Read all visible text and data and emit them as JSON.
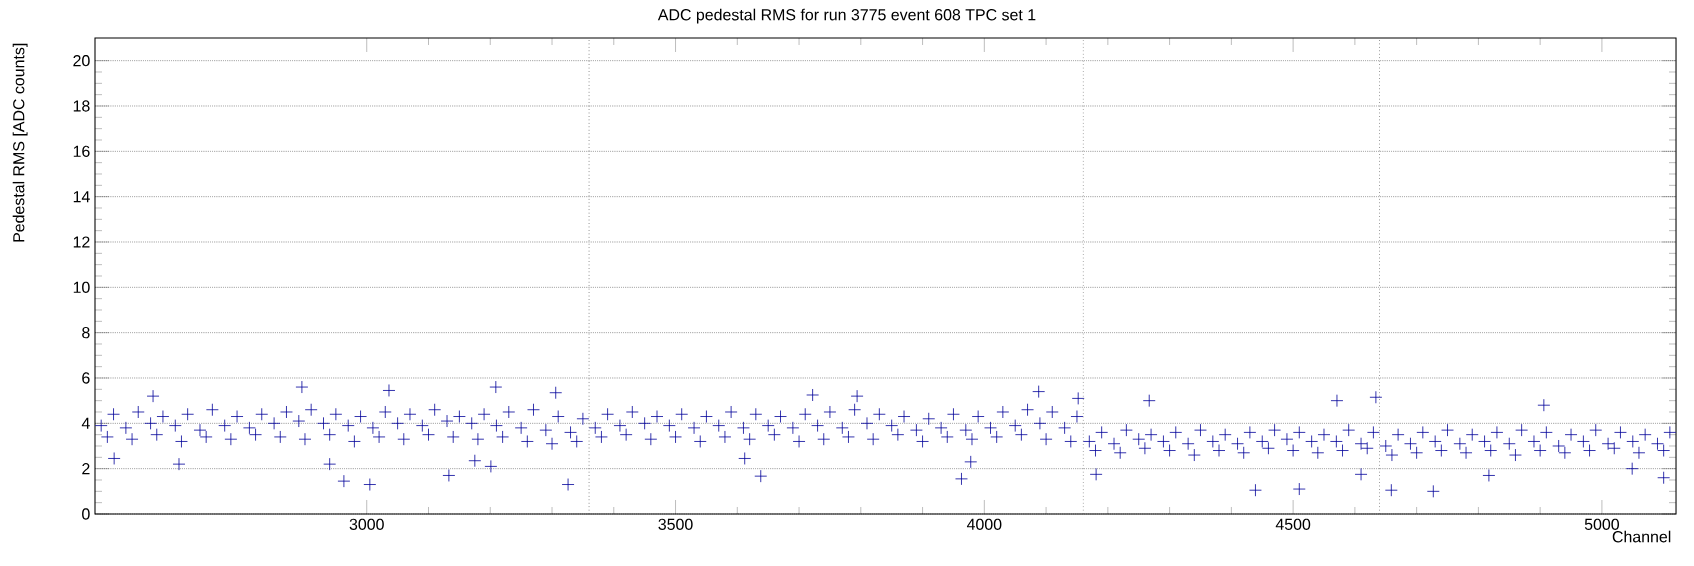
{
  "chart_data": {
    "type": "scatter",
    "title": "ADC pedestal RMS for run 3775 event 608 TPC set 1",
    "xlabel": "Channel",
    "ylabel": "Pedestal RMS [ADC counts]",
    "xlim": [
      2560,
      5120
    ],
    "ylim": [
      0,
      21
    ],
    "xticks": [
      3000,
      3500,
      4000,
      4500,
      5000
    ],
    "yticks": [
      0,
      2,
      4,
      6,
      8,
      10,
      12,
      14,
      16,
      18,
      20
    ],
    "grid": "y",
    "marker": "cross",
    "ref_lines": [
      {
        "axis": "x",
        "value": 3360,
        "color": "#555555",
        "line_style": "dotted"
      },
      {
        "axis": "x",
        "value": 4160,
        "color": "#555555",
        "line_style": "dotted"
      },
      {
        "axis": "x",
        "value": 4640,
        "color": "#555555",
        "line_style": "dotted"
      }
    ],
    "series": [
      {
        "color": "#000099",
        "x": [
          2570,
          2610,
          2650,
          2690,
          2730,
          2770,
          2810,
          2850,
          2890,
          2930,
          2970,
          3010,
          3050,
          3090,
          3130,
          3170,
          3210,
          3250,
          3290,
          3330,
          3370,
          3410,
          3450,
          3490,
          3530,
          3570,
          3610,
          3650,
          3690,
          3730,
          3770,
          3810,
          3850,
          3890,
          3930,
          3970,
          4010,
          4050,
          4090,
          4130,
          4170,
          4210,
          4250,
          4290,
          4330,
          4370,
          4410,
          4450,
          4490,
          4530,
          4570,
          4610,
          4650,
          4690,
          4730,
          4770,
          4810,
          4850,
          4890,
          4930,
          4970,
          5010,
          5050,
          5090,
          2590,
          2630,
          2670,
          2710,
          2750,
          2790,
          2830,
          2870,
          2910,
          2950,
          2990,
          3030,
          3070,
          3110,
          3150,
          3190,
          3230,
          3270,
          3310,
          3350,
          3390,
          3430,
          3470,
          3510,
          3550,
          3590,
          3630,
          3670,
          3710,
          3750,
          3790,
          3830,
          3870,
          3910,
          3950,
          3990,
          4030,
          4070,
          4110,
          4150,
          4190,
          4230,
          4270,
          4310,
          4350,
          4390,
          4430,
          4470,
          4510,
          4550,
          4590,
          4630,
          4670,
          4710,
          4750,
          4790,
          4830,
          4870,
          4910,
          4950,
          4990,
          5030,
          5070,
          5110,
          2580,
          2620,
          2660,
          2700,
          2740,
          2780,
          2820,
          2860,
          2900,
          2940,
          2980,
          3020,
          3060,
          3100,
          3140,
          3180,
          3220,
          3260,
          3300,
          3340,
          3380,
          3420,
          3460,
          3500,
          3540,
          3580,
          3620,
          3660,
          3700,
          3740,
          3780,
          3820,
          3860,
          3900,
          3940,
          3980,
          4020,
          4060,
          4100,
          4140,
          4180,
          4220,
          4260,
          4300,
          4340,
          4380,
          4420,
          4460,
          4500,
          4540,
          4580,
          4620,
          4660,
          4700,
          4740,
          4780,
          4820,
          4860,
          4900,
          4940,
          4980,
          5020,
          5060,
          5100,
          2895,
          2963,
          3005,
          3133,
          3326,
          3209,
          3306,
          3036,
          2591,
          2696,
          2940,
          3201,
          3175,
          2654,
          3638,
          3963,
          3722,
          3794,
          4088,
          4152,
          4181,
          4267,
          3612,
          3978,
          4439,
          4510,
          4571,
          4634,
          4659,
          4727,
          4906,
          4610,
          4817,
          5100,
          5049
        ],
        "values": [
          3.9,
          3.8,
          4.0,
          3.9,
          3.7,
          3.9,
          3.8,
          4.0,
          4.1,
          4.0,
          3.9,
          3.8,
          4.0,
          3.9,
          4.1,
          4.0,
          3.9,
          3.8,
          3.7,
          3.6,
          3.8,
          3.9,
          4.0,
          3.9,
          3.8,
          3.9,
          3.8,
          3.9,
          3.8,
          3.9,
          3.8,
          4.0,
          3.9,
          3.7,
          3.8,
          3.7,
          3.8,
          3.9,
          4.0,
          3.8,
          3.2,
          3.1,
          3.3,
          3.2,
          3.1,
          3.2,
          3.1,
          3.2,
          3.3,
          3.2,
          3.2,
          3.1,
          3.0,
          3.1,
          3.2,
          3.1,
          3.2,
          3.1,
          3.2,
          3.0,
          3.2,
          3.1,
          3.2,
          3.1,
          4.4,
          4.5,
          4.3,
          4.4,
          4.6,
          4.3,
          4.4,
          4.5,
          4.6,
          4.4,
          4.3,
          4.5,
          4.4,
          4.6,
          4.3,
          4.4,
          4.5,
          4.6,
          4.3,
          4.2,
          4.4,
          4.5,
          4.3,
          4.4,
          4.3,
          4.5,
          4.4,
          4.3,
          4.4,
          4.5,
          4.6,
          4.4,
          4.3,
          4.2,
          4.4,
          4.3,
          4.5,
          4.6,
          4.5,
          4.3,
          3.6,
          3.7,
          3.5,
          3.6,
          3.7,
          3.5,
          3.6,
          3.7,
          3.6,
          3.5,
          3.7,
          3.6,
          3.5,
          3.6,
          3.7,
          3.5,
          3.6,
          3.7,
          3.6,
          3.5,
          3.7,
          3.6,
          3.5,
          3.6,
          3.4,
          3.3,
          3.5,
          3.2,
          3.4,
          3.3,
          3.5,
          3.4,
          3.3,
          3.5,
          3.2,
          3.4,
          3.3,
          3.5,
          3.4,
          3.3,
          3.4,
          3.2,
          3.1,
          3.2,
          3.4,
          3.5,
          3.3,
          3.4,
          3.2,
          3.4,
          3.3,
          3.5,
          3.2,
          3.3,
          3.4,
          3.3,
          3.5,
          3.2,
          3.4,
          3.3,
          3.4,
          3.5,
          3.3,
          3.2,
          2.8,
          2.7,
          2.9,
          2.8,
          2.6,
          2.8,
          2.7,
          2.9,
          2.8,
          2.7,
          2.8,
          2.9,
          2.6,
          2.7,
          2.8,
          2.7,
          2.8,
          2.6,
          2.8,
          2.7,
          2.8,
          2.9,
          2.7,
          2.8,
          5.6,
          1.45,
          1.3,
          1.7,
          1.3,
          5.6,
          5.35,
          5.45,
          2.45,
          2.2,
          2.2,
          2.1,
          2.35,
          5.2,
          1.67,
          1.55,
          5.25,
          5.2,
          5.4,
          5.1,
          1.75,
          5.0,
          2.45,
          2.3,
          1.05,
          1.1,
          5.0,
          5.15,
          1.05,
          1.0,
          4.8,
          1.75,
          1.7,
          1.6,
          2.0
        ]
      }
    ]
  }
}
